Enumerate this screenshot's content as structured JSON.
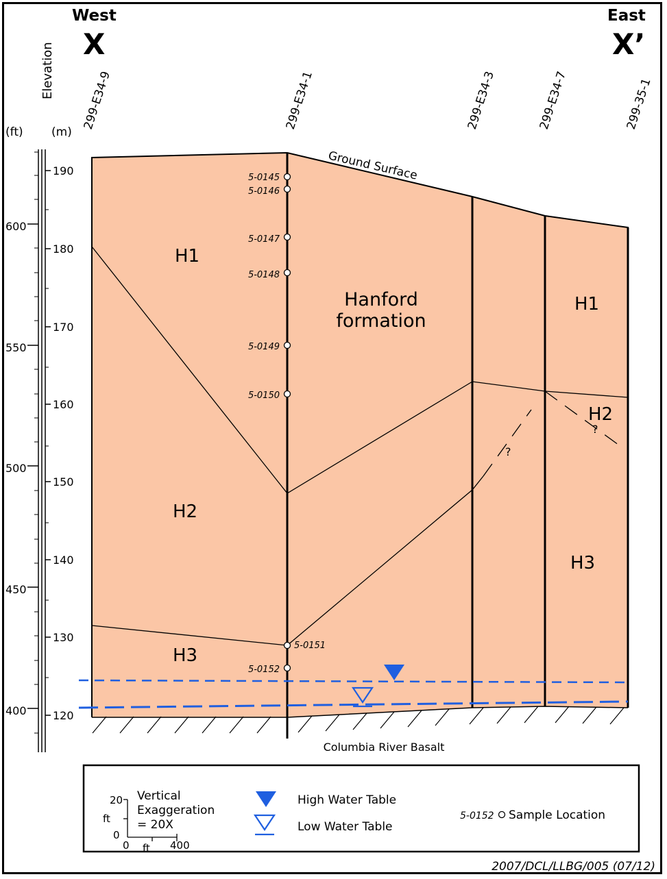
{
  "header": {
    "west_label": "West",
    "west_marker": "X",
    "east_label": "East",
    "east_marker": "X’",
    "elevation_label": "Elevation",
    "unit_ft": "(ft)",
    "unit_m": "(m)"
  },
  "wells": {
    "w1": "299-E34-9",
    "w2": "299-E34-1",
    "w3": "299-E34-3",
    "w4": "299-E34-7",
    "w5": "299-35-1"
  },
  "scale": {
    "ft_ticks": [
      "600",
      "550",
      "500",
      "450",
      "400"
    ],
    "m_ticks": [
      "190",
      "180",
      "170",
      "160",
      "150",
      "140",
      "130",
      "120"
    ]
  },
  "units": {
    "h1_left": "H1",
    "h2_left": "H2",
    "h3_left": "H3",
    "hanford_line1": "Hanford",
    "hanford_line2": "formation",
    "h1_right": "H1",
    "h2_right": "H2",
    "h3_right": "H3"
  },
  "labels": {
    "ground_surface": "Ground Surface",
    "basalt": "Columbia River Basalt",
    "question_1": "?",
    "question_2": "?"
  },
  "samples": {
    "s0145": "5-0145",
    "s0146": "5-0146",
    "s0147": "5-0147",
    "s0148": "5-0148",
    "s0149": "5-0149",
    "s0150": "5-0150",
    "s0151": "5-0151",
    "s0152": "5-0152"
  },
  "legend": {
    "scale_20": "20",
    "scale_ft_v": "ft",
    "scale_0_v": "0",
    "scale_0_h": "0",
    "scale_ft_h": "ft",
    "scale_400": "400",
    "vert_line1": "Vertical",
    "vert_line2": "Exaggeration",
    "vert_line3": "= 20X",
    "high_water": "High Water Table",
    "low_water": "Low Water Table",
    "sample_id": "5-0152",
    "sample_location": "Sample Location"
  },
  "footer": {
    "figure_id": "2007/DCL/LLBG/005 (07/12)"
  },
  "colors": {
    "formation_fill": "#FBC6A6",
    "water_blue": "#1F5FE0",
    "line": "#000000"
  }
}
